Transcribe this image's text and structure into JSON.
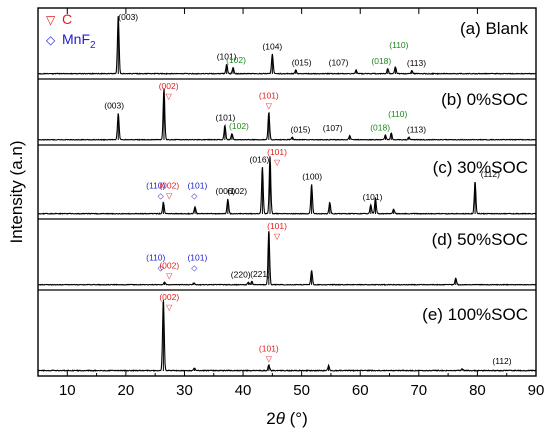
{
  "chart_data": {
    "type": "line",
    "xlabel": "2θ (°)",
    "ylabel": "Intensity (a.n)",
    "xlim": [
      5,
      90
    ],
    "x_ticks": [
      10,
      20,
      30,
      40,
      50,
      60,
      70,
      80,
      90
    ],
    "y_ticks_visible": false,
    "legend": {
      "placement": "top-left",
      "entries": [
        {
          "symbol": "▽",
          "label": "C",
          "color": "#e02020"
        },
        {
          "symbol": "◇",
          "label": "MnF",
          "sub": "2",
          "color": "#2020d0"
        }
      ]
    },
    "panels": [
      {
        "id": "a",
        "label": "(a) Blank",
        "peaks": [
          {
            "x": 18.7,
            "h": 1.0
          },
          {
            "x": 37.2,
            "h": 0.16
          },
          {
            "x": 38.3,
            "h": 0.1
          },
          {
            "x": 45.0,
            "h": 0.34
          },
          {
            "x": 49.0,
            "h": 0.06
          },
          {
            "x": 59.3,
            "h": 0.06
          },
          {
            "x": 64.7,
            "h": 0.09
          },
          {
            "x": 66.0,
            "h": 0.12
          },
          {
            "x": 68.8,
            "h": 0.05
          }
        ],
        "annotations": [
          {
            "x": 20.4,
            "text": "(003)",
            "color": "#000000"
          },
          {
            "x": 37.2,
            "text": "(101)",
            "color": "#000000"
          },
          {
            "x": 38.8,
            "text": "(102)",
            "color": "#1a8a1a"
          },
          {
            "x": 45.0,
            "text": "(104)",
            "color": "#000000"
          },
          {
            "x": 50.0,
            "text": "(015)",
            "color": "#000000"
          },
          {
            "x": 56.3,
            "text": "(107)",
            "color": "#000000"
          },
          {
            "x": 63.6,
            "text": "(018)",
            "color": "#1a8a1a"
          },
          {
            "x": 66.6,
            "text": "(110)",
            "color": "#1a8a1a"
          },
          {
            "x": 69.6,
            "text": "(113)",
            "color": "#000000"
          }
        ]
      },
      {
        "id": "b",
        "label": "(b) 0%SOC",
        "peaks": [
          {
            "x": 18.7,
            "h": 0.52
          },
          {
            "x": 26.5,
            "h": 1.0
          },
          {
            "x": 36.9,
            "h": 0.28
          },
          {
            "x": 38.1,
            "h": 0.12
          },
          {
            "x": 44.4,
            "h": 0.54
          },
          {
            "x": 48.4,
            "h": 0.05
          },
          {
            "x": 58.2,
            "h": 0.08
          },
          {
            "x": 64.3,
            "h": 0.09
          },
          {
            "x": 65.3,
            "h": 0.13
          },
          {
            "x": 68.3,
            "h": 0.05
          }
        ],
        "annotations": [
          {
            "x": 18.0,
            "text": "(003)",
            "color": "#000000"
          },
          {
            "x": 27.3,
            "text": "(002)",
            "color": "#e02020",
            "mark": "▽"
          },
          {
            "x": 37.0,
            "text": "(101)",
            "color": "#000000"
          },
          {
            "x": 39.3,
            "text": "(102)",
            "color": "#1a8a1a"
          },
          {
            "x": 44.4,
            "text": "(101)",
            "color": "#e02020",
            "mark": "▽"
          },
          {
            "x": 49.8,
            "text": "(015)",
            "color": "#000000"
          },
          {
            "x": 55.3,
            "text": "(107)",
            "color": "#000000"
          },
          {
            "x": 63.4,
            "text": "(018)",
            "color": "#1a8a1a"
          },
          {
            "x": 66.4,
            "text": "(110)",
            "color": "#1a8a1a"
          },
          {
            "x": 69.6,
            "text": "(113)",
            "color": "#000000"
          }
        ]
      },
      {
        "id": "c",
        "label": "(c) 30%SOC",
        "peaks": [
          {
            "x": 26.4,
            "h": 0.2
          },
          {
            "x": 31.8,
            "h": 0.12
          },
          {
            "x": 37.4,
            "h": 0.26
          },
          {
            "x": 43.3,
            "h": 0.82
          },
          {
            "x": 44.6,
            "h": 1.0
          },
          {
            "x": 51.7,
            "h": 0.52
          },
          {
            "x": 54.8,
            "h": 0.2
          },
          {
            "x": 61.8,
            "h": 0.16
          },
          {
            "x": 62.6,
            "h": 0.28
          },
          {
            "x": 65.7,
            "h": 0.08
          },
          {
            "x": 79.6,
            "h": 0.56
          }
        ],
        "annotations": [
          {
            "x": 27.4,
            "text": "(002)",
            "color": "#e02020",
            "mark": "▽"
          },
          {
            "x": 25.1,
            "text": "(110)",
            "color": "#2020d0",
            "mark": "◇"
          },
          {
            "x": 32.2,
            "text": "(101)",
            "color": "#2020d0",
            "mark": "◇"
          },
          {
            "x": 37.0,
            "text": "(006)",
            "color": "#000000"
          },
          {
            "x": 39.0,
            "text": "(102)",
            "color": "#000000"
          },
          {
            "x": 42.8,
            "text": "(016)",
            "color": "#000000"
          },
          {
            "x": 45.8,
            "text": "(101)",
            "color": "#e02020",
            "mark": "▽"
          },
          {
            "x": 51.8,
            "text": "(100)",
            "color": "#000000"
          },
          {
            "x": 62.1,
            "text": "(101)",
            "color": "#000000"
          },
          {
            "x": 82.2,
            "text": "(112)",
            "color": "#000000"
          }
        ]
      },
      {
        "id": "d",
        "label": "(d) 50%SOC",
        "peaks": [
          {
            "x": 26.6,
            "h": 0.05
          },
          {
            "x": 31.6,
            "h": 0.03
          },
          {
            "x": 40.9,
            "h": 0.05
          },
          {
            "x": 41.5,
            "h": 0.06
          },
          {
            "x": 44.4,
            "h": 1.0
          },
          {
            "x": 51.7,
            "h": 0.27
          },
          {
            "x": 76.3,
            "h": 0.12
          }
        ],
        "annotations": [
          {
            "x": 27.4,
            "text": "(002)",
            "color": "#e02020",
            "mark": "▽"
          },
          {
            "x": 25.1,
            "text": "(110)",
            "color": "#2020d0",
            "mark": "◇"
          },
          {
            "x": 32.2,
            "text": "(101)",
            "color": "#2020d0",
            "mark": "◇"
          },
          {
            "x": 39.6,
            "text": "(220)",
            "color": "#000000"
          },
          {
            "x": 42.9,
            "text": "(221)",
            "color": "#000000"
          },
          {
            "x": 45.8,
            "text": "(101)",
            "color": "#e02020",
            "mark": "▽"
          }
        ]
      },
      {
        "id": "e",
        "label": "(e) 100%SOC",
        "peaks": [
          {
            "x": 26.4,
            "h": 1.0
          },
          {
            "x": 31.7,
            "h": 0.04
          },
          {
            "x": 44.4,
            "h": 0.08
          },
          {
            "x": 54.6,
            "h": 0.07
          },
          {
            "x": 77.4,
            "h": 0.03
          }
        ],
        "annotations": [
          {
            "x": 27.4,
            "text": "(002)",
            "color": "#e02020",
            "mark": "▽"
          },
          {
            "x": 44.4,
            "text": "(101)",
            "color": "#e02020",
            "mark": "▽"
          },
          {
            "x": 84.2,
            "text": "(112)",
            "color": "#000000"
          }
        ]
      }
    ]
  }
}
